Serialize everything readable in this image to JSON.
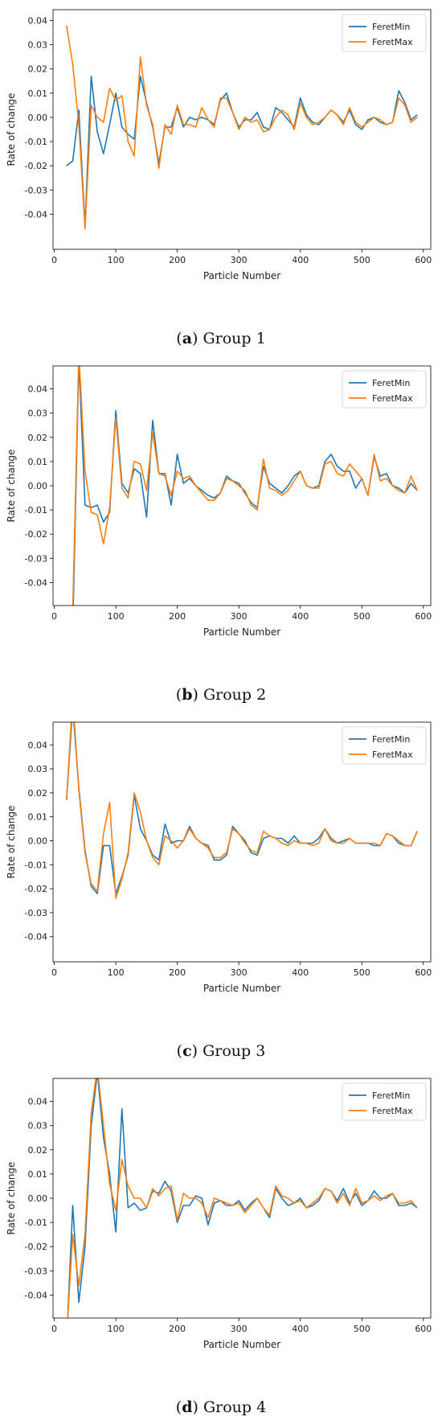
{
  "chart_data": [
    {
      "type": "line",
      "title": "",
      "xlabel": "Particle Number",
      "ylabel": "Rate of change",
      "xlim": [
        -2,
        612
      ],
      "ylim": [
        -0.0545,
        0.0445
      ],
      "xticks": [
        "0",
        "100",
        "200",
        "300",
        "400",
        "500",
        "600"
      ],
      "yticks": [
        "-0.04",
        "-0.03",
        "-0.02",
        "-0.01",
        "0.00",
        "0.01",
        "0.02",
        "0.03",
        "0.04"
      ],
      "grid": false,
      "legend": "top-right",
      "caption": {
        "letter": "a",
        "text": " Group 1"
      },
      "x": [
        20,
        30,
        40,
        50,
        60,
        70,
        80,
        90,
        100,
        110,
        120,
        130,
        140,
        150,
        160,
        170,
        180,
        190,
        200,
        210,
        220,
        230,
        240,
        250,
        260,
        270,
        280,
        290,
        300,
        310,
        320,
        330,
        340,
        350,
        360,
        370,
        380,
        390,
        400,
        410,
        420,
        430,
        440,
        450,
        460,
        470,
        480,
        490,
        500,
        510,
        520,
        530,
        540,
        550,
        560,
        570,
        580,
        590
      ],
      "series": [
        {
          "name": "FeretMin",
          "color": "#1f77b4",
          "values": [
            -0.02,
            -0.018,
            0.003,
            -0.045,
            0.017,
            -0.006,
            -0.015,
            -0.003,
            0.01,
            -0.004,
            -0.007,
            -0.009,
            0.017,
            0.006,
            -0.004,
            -0.019,
            -0.004,
            -0.004,
            0.004,
            -0.004,
            0.0,
            -0.001,
            0.0,
            -0.001,
            -0.003,
            0.007,
            0.01,
            0.002,
            -0.004,
            -0.001,
            -0.001,
            0.002,
            -0.004,
            -0.005,
            0.004,
            0.002,
            -0.001,
            -0.004,
            0.008,
            0.001,
            -0.002,
            -0.003,
            0.0,
            0.003,
            0.001,
            -0.002,
            0.003,
            -0.003,
            -0.005,
            -0.001,
            0.0,
            -0.002,
            -0.003,
            -0.002,
            0.011,
            0.006,
            -0.001,
            0.001
          ]
        },
        {
          "name": "FeretMax",
          "color": "#ff7f0e",
          "values": [
            0.038,
            0.022,
            -0.003,
            -0.046,
            0.005,
            0.0,
            -0.002,
            0.012,
            0.007,
            0.009,
            -0.01,
            -0.016,
            0.025,
            0.005,
            -0.003,
            -0.021,
            -0.003,
            -0.007,
            0.005,
            -0.003,
            -0.003,
            -0.004,
            0.004,
            -0.001,
            -0.004,
            0.008,
            0.008,
            0.002,
            -0.005,
            0.0,
            -0.002,
            -0.001,
            -0.006,
            -0.005,
            0.0,
            0.003,
            0.001,
            -0.005,
            0.006,
            0.0,
            -0.003,
            -0.002,
            0.0,
            0.003,
            0.001,
            -0.003,
            0.004,
            -0.002,
            -0.004,
            -0.002,
            0.0,
            -0.001,
            -0.003,
            -0.002,
            0.008,
            0.005,
            -0.002,
            0.0
          ]
        }
      ]
    },
    {
      "type": "line",
      "title": "",
      "xlabel": "Particle Number",
      "ylabel": "Rate of change",
      "xlim": [
        -2,
        612
      ],
      "ylim": [
        -0.0495,
        0.0495
      ],
      "xticks": [
        "0",
        "100",
        "200",
        "300",
        "400",
        "500",
        "600"
      ],
      "yticks": [
        "-0.04",
        "-0.03",
        "-0.02",
        "-0.01",
        "0.00",
        "0.01",
        "0.02",
        "0.03",
        "0.04"
      ],
      "grid": false,
      "legend": "top-right",
      "caption": {
        "letter": "b",
        "text": " Group 2"
      },
      "x": [
        30,
        40,
        50,
        60,
        70,
        80,
        90,
        100,
        110,
        120,
        130,
        140,
        150,
        160,
        170,
        180,
        190,
        200,
        210,
        220,
        230,
        240,
        250,
        260,
        270,
        280,
        290,
        300,
        310,
        320,
        330,
        340,
        350,
        360,
        370,
        380,
        390,
        400,
        410,
        420,
        430,
        440,
        450,
        460,
        470,
        480,
        490,
        500,
        510,
        520,
        530,
        540,
        550,
        560,
        570,
        580,
        590
      ],
      "series": [
        {
          "name": "FeretMin",
          "color": "#1f77b4",
          "values": [
            -0.06,
            0.052,
            -0.008,
            -0.009,
            -0.008,
            -0.015,
            -0.011,
            0.031,
            0.001,
            -0.003,
            0.007,
            0.005,
            -0.013,
            0.027,
            0.005,
            0.005,
            -0.008,
            0.013,
            0.001,
            0.003,
            0.0,
            -0.002,
            -0.004,
            -0.005,
            -0.003,
            0.004,
            0.002,
            0.001,
            -0.003,
            -0.007,
            -0.009,
            0.008,
            0.001,
            -0.001,
            -0.003,
            0.0,
            0.004,
            0.006,
            0.0,
            -0.001,
            0.0,
            0.01,
            0.013,
            0.008,
            0.006,
            0.006,
            -0.001,
            0.003,
            -0.004,
            0.012,
            0.004,
            0.005,
            0.0,
            -0.001,
            -0.003,
            0.001,
            -0.002
          ]
        },
        {
          "name": "FeretMax",
          "color": "#ff7f0e",
          "values": [
            -0.052,
            0.055,
            0.006,
            -0.011,
            -0.012,
            -0.024,
            -0.009,
            0.028,
            -0.001,
            -0.005,
            0.01,
            0.009,
            -0.002,
            0.022,
            0.005,
            0.004,
            -0.004,
            0.006,
            0.003,
            0.004,
            0.0,
            -0.003,
            -0.006,
            -0.006,
            -0.003,
            0.003,
            0.002,
            0.0,
            -0.002,
            -0.008,
            -0.01,
            0.011,
            -0.001,
            -0.002,
            -0.004,
            -0.002,
            0.002,
            0.006,
            0.0,
            -0.001,
            -0.001,
            0.009,
            0.01,
            0.005,
            0.004,
            0.009,
            0.006,
            0.003,
            -0.004,
            0.013,
            0.002,
            0.003,
            0.0,
            -0.002,
            -0.003,
            0.004,
            -0.002
          ]
        }
      ]
    },
    {
      "type": "line",
      "title": "",
      "xlabel": "Particle Number",
      "ylabel": "Rate of change",
      "xlim": [
        -2,
        612
      ],
      "ylim": [
        -0.0505,
        0.0495
      ],
      "xticks": [
        "0",
        "100",
        "200",
        "300",
        "400",
        "500",
        "600"
      ],
      "yticks": [
        "-0.04",
        "-0.03",
        "-0.02",
        "-0.01",
        "0.00",
        "0.01",
        "0.02",
        "0.03",
        "0.04"
      ],
      "grid": false,
      "legend": "top-right",
      "caption": {
        "letter": "c",
        "text": " Group 3"
      },
      "x": [
        20,
        30,
        40,
        50,
        60,
        70,
        80,
        90,
        100,
        110,
        120,
        130,
        140,
        150,
        160,
        170,
        180,
        190,
        200,
        210,
        220,
        230,
        240,
        250,
        260,
        270,
        280,
        290,
        300,
        310,
        320,
        330,
        340,
        350,
        360,
        370,
        380,
        390,
        400,
        410,
        420,
        430,
        440,
        450,
        460,
        470,
        480,
        490,
        500,
        510,
        520,
        530,
        540,
        550,
        560,
        570,
        580,
        590
      ],
      "series": [
        {
          "name": "FeretMin",
          "color": "#1f77b4",
          "values": [
            0.017,
            0.056,
            0.022,
            -0.004,
            -0.019,
            -0.022,
            -0.002,
            -0.002,
            -0.022,
            -0.015,
            -0.006,
            0.019,
            0.005,
            0.0,
            -0.006,
            -0.008,
            0.007,
            -0.001,
            0.0,
            0.0,
            0.006,
            0.001,
            -0.001,
            -0.002,
            -0.008,
            -0.008,
            -0.006,
            0.006,
            0.003,
            0.0,
            -0.005,
            -0.006,
            0.001,
            0.002,
            0.001,
            0.001,
            -0.001,
            0.002,
            -0.001,
            -0.001,
            -0.001,
            0.001,
            0.005,
            0.001,
            -0.001,
            0.0,
            0.001,
            -0.001,
            -0.001,
            -0.001,
            -0.002,
            -0.002,
            0.003,
            0.002,
            -0.001,
            -0.002,
            -0.002,
            0.004
          ]
        },
        {
          "name": "FeretMax",
          "color": "#ff7f0e",
          "values": [
            0.017,
            0.06,
            0.021,
            -0.005,
            -0.018,
            -0.021,
            0.003,
            0.016,
            -0.024,
            -0.016,
            -0.005,
            0.02,
            0.012,
            0.0,
            -0.007,
            -0.01,
            0.002,
            0.0,
            -0.003,
            0.0,
            0.005,
            0.001,
            -0.001,
            -0.003,
            -0.007,
            -0.007,
            -0.005,
            0.005,
            0.003,
            -0.001,
            -0.004,
            -0.005,
            0.004,
            0.002,
            0.001,
            -0.001,
            -0.002,
            0.0,
            -0.001,
            -0.001,
            -0.002,
            -0.001,
            0.005,
            0.0,
            -0.001,
            -0.001,
            0.001,
            -0.001,
            -0.001,
            -0.001,
            -0.001,
            -0.002,
            0.003,
            0.002,
            0.0,
            -0.002,
            -0.002,
            0.004
          ]
        }
      ]
    },
    {
      "type": "line",
      "title": "",
      "xlabel": "Particle Number",
      "ylabel": "Rate of change",
      "xlim": [
        -2,
        612
      ],
      "ylim": [
        -0.0495,
        0.0495
      ],
      "xticks": [
        "0",
        "100",
        "200",
        "300",
        "400",
        "500",
        "600"
      ],
      "yticks": [
        "-0.04",
        "-0.03",
        "-0.02",
        "-0.01",
        "0.00",
        "0.01",
        "0.02",
        "0.03",
        "0.04"
      ],
      "grid": false,
      "legend": "top-right",
      "caption": {
        "letter": "d",
        "text": " Group 4"
      },
      "x": [
        20,
        30,
        40,
        50,
        60,
        70,
        80,
        90,
        100,
        110,
        120,
        130,
        140,
        150,
        160,
        170,
        180,
        190,
        200,
        210,
        220,
        230,
        240,
        250,
        260,
        270,
        280,
        290,
        300,
        310,
        320,
        330,
        340,
        350,
        360,
        370,
        380,
        390,
        400,
        410,
        420,
        430,
        440,
        450,
        460,
        470,
        480,
        490,
        500,
        510,
        520,
        530,
        540,
        550,
        560,
        570,
        580,
        590
      ],
      "series": [
        {
          "name": "FeretMin",
          "color": "#1f77b4",
          "values": [
            -0.06,
            -0.003,
            -0.043,
            -0.02,
            0.03,
            0.052,
            0.025,
            0.01,
            -0.014,
            0.037,
            -0.004,
            -0.002,
            -0.005,
            -0.004,
            0.003,
            0.002,
            0.007,
            0.003,
            -0.01,
            -0.003,
            -0.003,
            0.001,
            0.0,
            -0.011,
            -0.002,
            -0.001,
            -0.003,
            -0.003,
            -0.001,
            -0.005,
            -0.002,
            0.0,
            -0.004,
            -0.008,
            0.004,
            0.0,
            -0.003,
            -0.002,
            0.0,
            -0.004,
            -0.003,
            -0.001,
            0.004,
            0.003,
            -0.001,
            0.004,
            -0.002,
            0.002,
            -0.003,
            -0.001,
            0.003,
            0.0,
            0.0,
            0.002,
            -0.003,
            -0.003,
            -0.002,
            -0.004
          ]
        },
        {
          "name": "FeretMax",
          "color": "#ff7f0e",
          "values": [
            -0.058,
            -0.015,
            -0.036,
            -0.015,
            0.035,
            0.054,
            0.03,
            0.006,
            -0.005,
            0.016,
            0.005,
            0.0,
            0.0,
            -0.004,
            0.004,
            0.001,
            0.004,
            0.005,
            -0.009,
            0.002,
            0.0,
            0.0,
            -0.002,
            -0.008,
            0.0,
            -0.001,
            -0.002,
            -0.003,
            -0.002,
            -0.006,
            -0.003,
            0.0,
            -0.004,
            -0.007,
            0.005,
            0.001,
            0.0,
            -0.002,
            -0.001,
            -0.004,
            -0.002,
            0.0,
            0.004,
            0.003,
            -0.002,
            0.002,
            -0.003,
            0.004,
            -0.002,
            -0.001,
            0.001,
            -0.001,
            0.001,
            0.002,
            -0.002,
            -0.002,
            -0.001,
            -0.004
          ]
        }
      ]
    }
  ]
}
